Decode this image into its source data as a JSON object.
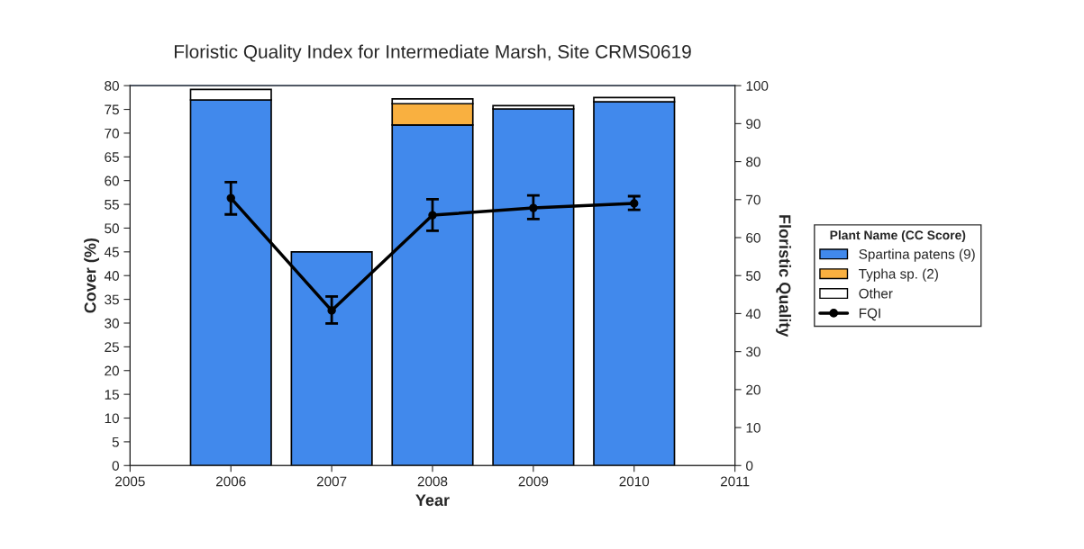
{
  "chart_data": {
    "type": "bar",
    "title": "Floristic Quality Index for Intermediate Marsh, Site CRMS0619",
    "xlabel": "Year",
    "ylabel": "Cover (%)",
    "y2label": "Floristic Quality",
    "legend_title": "Plant Name (CC Score)",
    "x": [
      2006,
      2007,
      2008,
      2009,
      2010
    ],
    "stacked": true,
    "legend": "right",
    "grid": false,
    "xlim": [
      2005,
      2011
    ],
    "xticks": [
      2005,
      2006,
      2007,
      2008,
      2009,
      2010,
      2011
    ],
    "ylim": [
      0,
      80
    ],
    "yticks": [
      0,
      5,
      10,
      15,
      20,
      25,
      30,
      35,
      40,
      45,
      50,
      55,
      60,
      65,
      70,
      75,
      80
    ],
    "y2lim": [
      0,
      100
    ],
    "y2ticks": [
      0,
      10,
      20,
      30,
      40,
      50,
      60,
      70,
      80,
      90,
      100
    ],
    "series": [
      {
        "name": "Spartina patens (9)",
        "color": "#4189ec",
        "values": [
          77,
          45,
          71.7,
          75.1,
          76.6
        ]
      },
      {
        "name": "Typha sp. (2)",
        "color": "#f9b040",
        "values": [
          null,
          null,
          4.5,
          null,
          null
        ]
      },
      {
        "name": "Other",
        "color": "#ffffff",
        "values": [
          2.2,
          null,
          1,
          0.7,
          0.9
        ]
      },
      {
        "name": "FQI",
        "type": "line",
        "axis": "y2",
        "color": "#000000",
        "marker": "circle",
        "line_style": "solid",
        "values": [
          70.4,
          40.8,
          65.9,
          67.8,
          69.0
        ],
        "errors": [
          [
            66.1,
            74.6
          ],
          [
            37.4,
            44.5
          ],
          [
            61.8,
            70.1
          ],
          [
            64.9,
            71.1
          ],
          [
            67.3,
            70.9
          ]
        ]
      }
    ]
  }
}
